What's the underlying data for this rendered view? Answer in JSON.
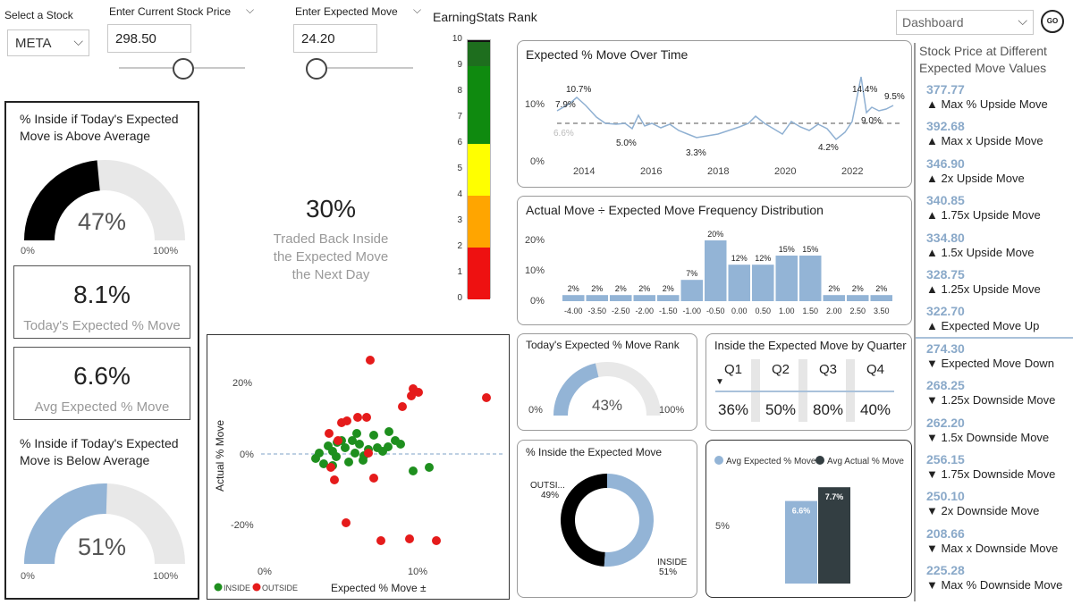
{
  "controls": {
    "stock_label": "Select a Stock",
    "stock_value": "META",
    "price_label": "Enter Current Stock Price",
    "price_value": "298.50",
    "move_label": "Enter Expected Move",
    "move_value": "24.20",
    "dashboard_value": "Dashboard",
    "go_label": "GO"
  },
  "left_panel": {
    "above_title": "% Inside if Today's Expected Move is Above Average",
    "above_value": "47%",
    "above_fraction": 0.47,
    "above_min": "0%",
    "above_max": "100%",
    "expected_move_value": "8.1%",
    "expected_move_label": "Today's Expected % Move",
    "avg_move_value": "6.6%",
    "avg_move_label": "Avg Expected % Move",
    "below_title": "% Inside if Today's Expected Move is Below Average",
    "below_value": "51%",
    "below_fraction": 0.51,
    "below_min": "0%",
    "below_max": "100%"
  },
  "traded_back": {
    "value": "30%",
    "label": "Traded Back Inside the Expected Move the Next Day"
  },
  "rank": {
    "title": "EarningStats Rank",
    "ticks": [
      "10",
      "9",
      "8",
      "7",
      "6",
      "5",
      "4",
      "3",
      "2",
      "1",
      "0"
    ],
    "colors": {
      "green_dark": "#1e6e1e",
      "green": "#0f8a0f",
      "yellow": "#ffff00",
      "orange": "#ffa500",
      "red": "#ee1111"
    }
  },
  "move_over_time": {
    "title": "Expected % Move Over Time",
    "y_ticks": [
      "10%",
      "0%"
    ],
    "avg_label": "6.6%",
    "x_ticks": [
      "2014",
      "2016",
      "2018",
      "2020",
      "2022"
    ],
    "point_labels": [
      "7.9%",
      "10.7%",
      "5.0%",
      "3.3%",
      "4.2%",
      "14.4%",
      "9.0%",
      "9.5%"
    ]
  },
  "distribution": {
    "title": "Actual Move ÷ Expected Move Frequency Distribution",
    "y_ticks": [
      "20%",
      "10%",
      "0%"
    ],
    "categories": [
      "-4.00",
      "-3.50",
      "-2.50",
      "-2.00",
      "-1.50",
      "-1.00",
      "-0.50",
      "0.00",
      "0.50",
      "1.00",
      "1.50",
      "2.00",
      "2.50",
      "3.50"
    ],
    "values": [
      2,
      2,
      2,
      2,
      2,
      7,
      20,
      12,
      12,
      15,
      15,
      2,
      2,
      2
    ],
    "labels": [
      "2%",
      "2%",
      "2%",
      "2%",
      "2%",
      "7%",
      "20%",
      "12%",
      "12%",
      "15%",
      "15%",
      "2%",
      "2%",
      "2%"
    ]
  },
  "scatter": {
    "y_axis_label": "Actual % Move",
    "x_axis_label": "Expected % Move ±",
    "y_ticks": [
      "20%",
      "0%",
      "-20%"
    ],
    "x_ticks": [
      "0%",
      "10%"
    ],
    "legend_inside": "INSIDE",
    "legend_outside": "OUTSIDE",
    "colors": {
      "inside": "#1e8f1e",
      "outside": "#e51b1b"
    }
  },
  "rank_gauge": {
    "title": "Today's Expected % Move Rank",
    "value": "43%",
    "fraction": 0.43,
    "min": "0%",
    "max": "100%"
  },
  "by_quarter": {
    "title": "Inside the Expected Move by Quarter",
    "quarters": [
      "Q1",
      "Q2",
      "Q3",
      "Q4"
    ],
    "values": [
      "36%",
      "50%",
      "80%",
      "40%"
    ]
  },
  "inside_donut": {
    "title": "% Inside the Expected Move",
    "outside_label": "OUTSI...",
    "outside_value": "49%",
    "inside_label": "INSIDE",
    "inside_value": "51%",
    "inside_fraction": 0.51
  },
  "avg_bars": {
    "legend_expected": "Avg Expected % Move",
    "legend_actual": "Avg Actual % Move",
    "y_tick": "5%",
    "expected_value": 6.6,
    "actual_value": 7.7,
    "expected_label": "6.6%",
    "actual_label": "7.7%"
  },
  "stock_prices": {
    "title": "Stock Price at Different Expected Move Values",
    "items": [
      {
        "value": "377.77",
        "label": "▲ Max % Upside Move"
      },
      {
        "value": "392.68",
        "label": "▲ Max x Upside Move"
      },
      {
        "value": "346.90",
        "label": "▲ 2x Upside Move"
      },
      {
        "value": "340.85",
        "label": "▲ 1.75x Upside Move"
      },
      {
        "value": "334.80",
        "label": "▲ 1.5x Upside Move"
      },
      {
        "value": "328.75",
        "label": "▲ 1.25x Upside Move"
      },
      {
        "value": "322.70",
        "label": "▲ Expected Move Up"
      },
      {
        "value": "274.30",
        "label": "▼ Expected Move Down"
      },
      {
        "value": "268.25",
        "label": "▼ 1.25x Downside Move"
      },
      {
        "value": "262.20",
        "label": "▼ 1.5x Downside Move"
      },
      {
        "value": "256.15",
        "label": "▼ 1.75x Downside Move"
      },
      {
        "value": "250.10",
        "label": "▼ 2x Downside Move"
      },
      {
        "value": "208.66",
        "label": "▼ Max x Downside Move"
      },
      {
        "value": "225.28",
        "label": "▼ Max % Downside Move"
      }
    ]
  }
}
